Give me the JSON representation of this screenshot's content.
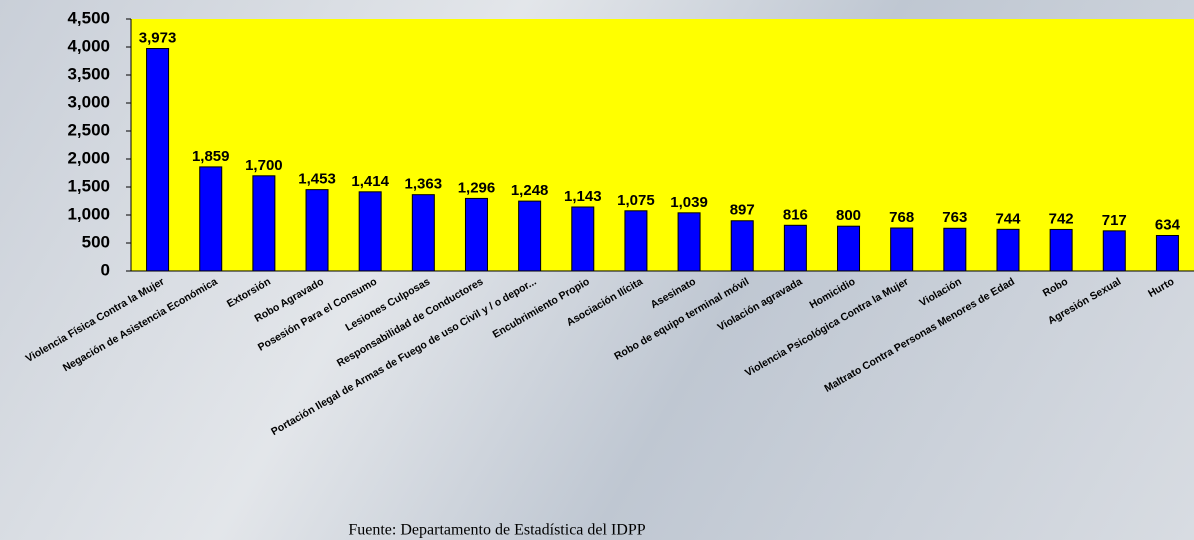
{
  "chart_data": {
    "type": "bar",
    "categories": [
      "Violencia Física Contra la Mujer",
      "Negación de Asistencia Económica",
      "Extorsión",
      "Robo Agravado",
      "Posesión Para el Consumo",
      "Lesiones Culposas",
      "Responsabilidad de Conductores",
      "Portación Ilegal de Armas de Fuego de uso Civil y / o depor...",
      "Encubrimiento Propio",
      "Asociación Ilícita",
      "Asesinato",
      "Robo de equipo terminal móvil",
      "Violación agravada",
      "Homicidio",
      "Violencia Psicológica Contra la Mujer",
      "Violación",
      "Maltrato Contra Personas Menores de Edad",
      "Robo",
      "Agresión Sexual",
      "Hurto"
    ],
    "values": [
      3973,
      1859,
      1700,
      1453,
      1414,
      1363,
      1296,
      1248,
      1143,
      1075,
      1039,
      897,
      816,
      800,
      768,
      763,
      744,
      742,
      717,
      634
    ],
    "value_labels": [
      "3,973",
      "1,859",
      "1,700",
      "1,453",
      "1,414",
      "1,363",
      "1,296",
      "1,248",
      "1,143",
      "1,075",
      "1,039",
      "897",
      "816",
      "800",
      "768",
      "763",
      "744",
      "742",
      "717",
      "634"
    ],
    "color": "#0000ff",
    "plot_background": "#ffff00",
    "ylim": [
      0,
      4500
    ],
    "yticks": [
      0,
      500,
      {
        "value": 1000,
        "label": "1,000"
      },
      {
        "value": 1500,
        "label": "1,500"
      },
      {
        "value": 2000,
        "label": "2,000"
      },
      {
        "value": 2500,
        "label": "2,500"
      },
      {
        "value": 3000,
        "label": "3,000"
      },
      {
        "value": 3500,
        "label": "3,500"
      },
      {
        "value": 4000,
        "label": "4,000"
      },
      {
        "value": 4500,
        "label": "4,500"
      }
    ],
    "source": "Fuente:   Departamento de Estadística del IDPP"
  }
}
